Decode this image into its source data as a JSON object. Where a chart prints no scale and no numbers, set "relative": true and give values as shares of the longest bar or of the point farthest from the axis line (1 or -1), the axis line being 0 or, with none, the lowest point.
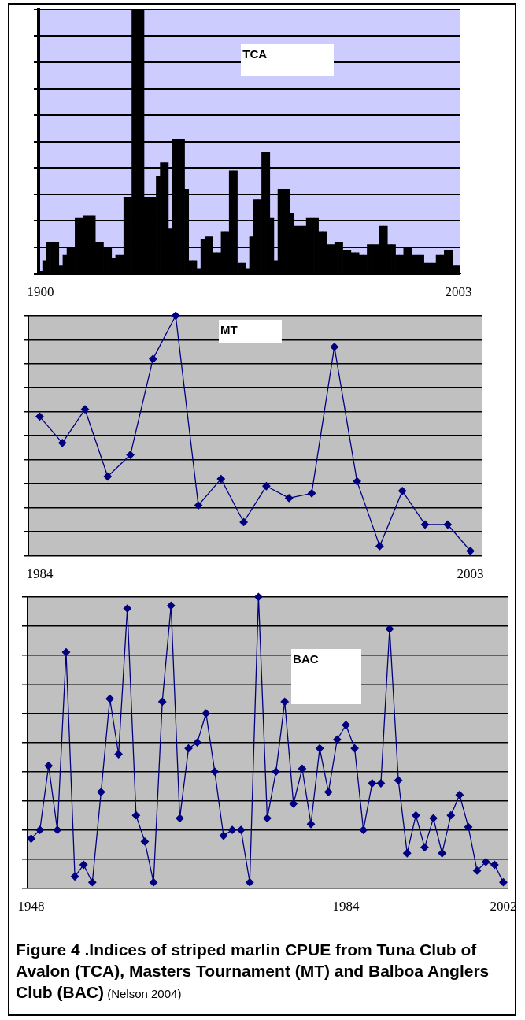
{
  "chart_data": [
    {
      "type": "bar",
      "title": "TCA",
      "relative": true,
      "grid": "y",
      "legend": false,
      "tick_labels": "x",
      "color": "#000000",
      "categories": [
        "1900",
        null,
        null,
        null,
        null,
        null,
        null,
        null,
        null,
        null,
        null,
        null,
        null,
        null,
        null,
        null,
        null,
        null,
        null,
        null,
        null,
        null,
        null,
        null,
        null,
        null,
        null,
        null,
        null,
        null,
        null,
        null,
        null,
        null,
        null,
        null,
        null,
        null,
        null,
        null,
        null,
        null,
        null,
        null,
        null,
        null,
        null,
        null,
        null,
        null,
        null,
        null,
        null,
        null,
        null,
        null,
        null,
        null,
        null,
        null,
        null,
        null,
        null,
        null,
        null,
        null,
        null,
        null,
        null,
        null,
        null,
        null,
        null,
        null,
        null,
        null,
        null,
        null,
        null,
        null,
        null,
        null,
        null,
        null,
        null,
        null,
        null,
        null,
        null,
        null,
        null,
        null,
        null,
        null,
        null,
        null,
        null,
        null,
        null,
        null,
        null,
        null,
        null,
        "2003"
      ],
      "values": [
        0.01,
        0.05,
        0.12,
        0.12,
        0.12,
        0.03,
        0.07,
        0.1,
        0.1,
        0.21,
        0.21,
        0.22,
        0.22,
        0.22,
        0.12,
        0.12,
        0.1,
        0.1,
        0.06,
        0.07,
        0.07,
        0.29,
        0.29,
        1,
        1,
        1,
        0.29,
        0.29,
        0.29,
        0.37,
        0.42,
        0.42,
        0.17,
        0.51,
        0.51,
        0.51,
        0.32,
        0.05,
        0.05,
        0.02,
        0.13,
        0.14,
        0.14,
        0.08,
        0.08,
        0.16,
        0.16,
        0.39,
        0.39,
        0.04,
        0.04,
        0.02,
        0.14,
        0.28,
        0.28,
        0.46,
        0.46,
        0.21,
        0.05,
        0.32,
        0.32,
        0.32,
        0.23,
        0.18,
        0.18,
        0.18,
        0.21,
        0.21,
        0.21,
        0.16,
        0.16,
        0.11,
        0.11,
        0.12,
        0.12,
        0.09,
        0.09,
        0.08,
        0.08,
        0.07,
        0.07,
        0.11,
        0.11,
        0.11,
        0.18,
        0.18,
        0.11,
        0.11,
        0.07,
        0.07,
        0.1,
        0.1,
        0.07,
        0.07,
        0.07,
        0.04,
        0.04,
        0.04,
        0.07,
        0.07,
        0.09,
        0.09,
        0.03,
        0.03
      ]
    },
    {
      "type": "line",
      "title": "MT",
      "relative": true,
      "grid": "y",
      "legend": false,
      "tick_labels": "x",
      "color": "#000080",
      "marker": "diamond",
      "line_style": "solid",
      "categories": [
        "1984",
        null,
        null,
        null,
        null,
        null,
        null,
        null,
        null,
        null,
        null,
        null,
        null,
        null,
        null,
        null,
        null,
        null,
        null,
        "2003"
      ],
      "values": [
        0.58,
        0.47,
        0.61,
        0.33,
        0.42,
        0.82,
        1,
        0.21,
        0.32,
        0.14,
        0.29,
        0.24,
        0.26,
        0.87,
        0.31,
        0.04,
        0.27,
        0.13,
        0.13,
        0.02
      ]
    },
    {
      "type": "line",
      "title": "BAC",
      "relative": true,
      "grid": "y",
      "legend": false,
      "tick_labels": "x",
      "color": "#000080",
      "marker": "diamond",
      "line_style": "solid",
      "categories": [
        "1948",
        null,
        null,
        null,
        null,
        null,
        null,
        null,
        null,
        null,
        null,
        null,
        null,
        null,
        null,
        null,
        null,
        null,
        null,
        null,
        null,
        null,
        null,
        null,
        null,
        null,
        null,
        null,
        null,
        null,
        null,
        null,
        null,
        null,
        null,
        null,
        "1984",
        null,
        null,
        null,
        null,
        null,
        null,
        null,
        null,
        null,
        null,
        null,
        null,
        null,
        null,
        null,
        null,
        null,
        "2002"
      ],
      "values": [
        0.17,
        0.2,
        0.42,
        0.2,
        0.81,
        0.04,
        0.08,
        0.02,
        0.33,
        0.65,
        0.46,
        0.96,
        0.25,
        0.16,
        0.02,
        0.64,
        0.97,
        0.24,
        0.48,
        0.5,
        0.6,
        0.4,
        0.18,
        0.2,
        0.2,
        0.02,
        1,
        0.24,
        0.4,
        0.64,
        0.29,
        0.41,
        0.22,
        0.48,
        0.33,
        0.51,
        0.56,
        0.48,
        0.2,
        0.36,
        0.36,
        0.89,
        0.37,
        0.12,
        0.25,
        0.14,
        0.24,
        0.12,
        0.25,
        0.32,
        0.21,
        0.06,
        0.09,
        0.08,
        0.02
      ],
      "annotations": [
        "Figure 4 .Indices of striped marlin CPUE from Tuna Club of Avalon (TCA), Masters Tournament (MT) and Balboa Anglers Club (BAC)",
        "(Nelson 2004)"
      ]
    }
  ]
}
